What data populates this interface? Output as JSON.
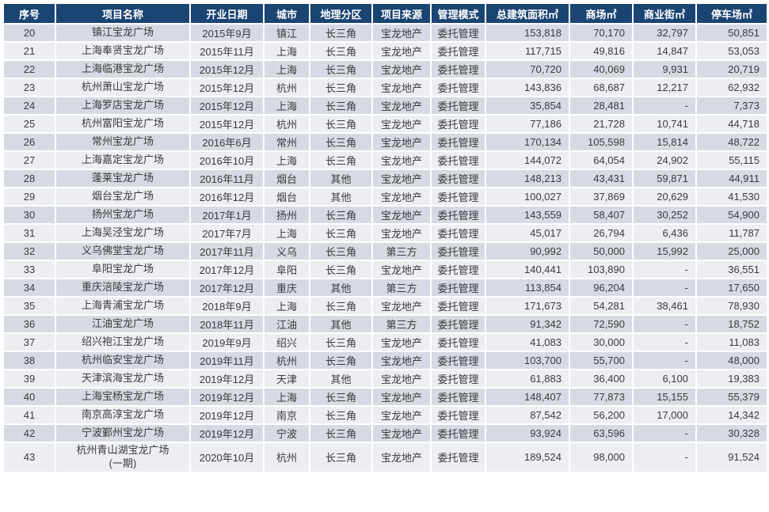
{
  "colors": {
    "header_bg": "#1a4472",
    "header_text": "#ffffff",
    "row_even_bg": "#d6dae2",
    "row_odd_bg": "#eceef2",
    "text": "#3b3b3b"
  },
  "chart_data": {
    "type": "table",
    "columns": [
      "序号",
      "项目名称",
      "开业日期",
      "城市",
      "地理分区",
      "项目来源",
      "管理模式",
      "总建筑面积㎡",
      "商场㎡",
      "商业街㎡",
      "停车场㎡"
    ],
    "rows": [
      [
        "20",
        "镇江宝龙广场",
        "2015年9月",
        "镇江",
        "长三角",
        "宝龙地产",
        "委托管理",
        "153,818",
        "70,170",
        "32,797",
        "50,851"
      ],
      [
        "21",
        "上海奉贤宝龙广场",
        "2015年11月",
        "上海",
        "长三角",
        "宝龙地产",
        "委托管理",
        "117,715",
        "49,816",
        "14,847",
        "53,053"
      ],
      [
        "22",
        "上海临港宝龙广场",
        "2015年12月",
        "上海",
        "长三角",
        "宝龙地产",
        "委托管理",
        "70,720",
        "40,069",
        "9,931",
        "20,719"
      ],
      [
        "23",
        "杭州萧山宝龙广场",
        "2015年12月",
        "杭州",
        "长三角",
        "宝龙地产",
        "委托管理",
        "143,836",
        "68,687",
        "12,217",
        "62,932"
      ],
      [
        "24",
        "上海罗店宝龙广场",
        "2015年12月",
        "上海",
        "长三角",
        "宝龙地产",
        "委托管理",
        "35,854",
        "28,481",
        "-",
        "7,373"
      ],
      [
        "25",
        "杭州富阳宝龙广场",
        "2015年12月",
        "杭州",
        "长三角",
        "宝龙地产",
        "委托管理",
        "77,186",
        "21,728",
        "10,741",
        "44,718"
      ],
      [
        "26",
        "常州宝龙广场",
        "2016年6月",
        "常州",
        "长三角",
        "宝龙地产",
        "委托管理",
        "170,134",
        "105,598",
        "15,814",
        "48,722"
      ],
      [
        "27",
        "上海嘉定宝龙广场",
        "2016年10月",
        "上海",
        "长三角",
        "宝龙地产",
        "委托管理",
        "144,072",
        "64,054",
        "24,902",
        "55,115"
      ],
      [
        "28",
        "蓬莱宝龙广场",
        "2016年11月",
        "烟台",
        "其他",
        "宝龙地产",
        "委托管理",
        "148,213",
        "43,431",
        "59,871",
        "44,911"
      ],
      [
        "29",
        "烟台宝龙广场",
        "2016年12月",
        "烟台",
        "其他",
        "宝龙地产",
        "委托管理",
        "100,027",
        "37,869",
        "20,629",
        "41,530"
      ],
      [
        "30",
        "扬州宝龙广场",
        "2017年1月",
        "扬州",
        "长三角",
        "宝龙地产",
        "委托管理",
        "143,559",
        "58,407",
        "30,252",
        "54,900"
      ],
      [
        "31",
        "上海吴泾宝龙广场",
        "2017年7月",
        "上海",
        "长三角",
        "宝龙地产",
        "委托管理",
        "45,017",
        "26,794",
        "6,436",
        "11,787"
      ],
      [
        "32",
        "义乌佛堂宝龙广场",
        "2017年11月",
        "义乌",
        "长三角",
        "第三方",
        "委托管理",
        "90,992",
        "50,000",
        "15,992",
        "25,000"
      ],
      [
        "33",
        "阜阳宝龙广场",
        "2017年12月",
        "阜阳",
        "长三角",
        "宝龙地产",
        "委托管理",
        "140,441",
        "103,890",
        "-",
        "36,551"
      ],
      [
        "34",
        "重庆涪陵宝龙广场",
        "2017年12月",
        "重庆",
        "其他",
        "第三方",
        "委托管理",
        "113,854",
        "96,204",
        "-",
        "17,650"
      ],
      [
        "35",
        "上海青浦宝龙广场",
        "2018年9月",
        "上海",
        "长三角",
        "宝龙地产",
        "委托管理",
        "171,673",
        "54,281",
        "38,461",
        "78,930"
      ],
      [
        "36",
        "江油宝龙广场",
        "2018年11月",
        "江油",
        "其他",
        "第三方",
        "委托管理",
        "91,342",
        "72,590",
        "-",
        "18,752"
      ],
      [
        "37",
        "绍兴袍江宝龙广场",
        "2019年9月",
        "绍兴",
        "长三角",
        "宝龙地产",
        "委托管理",
        "41,083",
        "30,000",
        "-",
        "11,083"
      ],
      [
        "38",
        "杭州临安宝龙广场",
        "2019年11月",
        "杭州",
        "长三角",
        "宝龙地产",
        "委托管理",
        "103,700",
        "55,700",
        "-",
        "48,000"
      ],
      [
        "39",
        "天津滨海宝龙广场",
        "2019年12月",
        "天津",
        "其他",
        "宝龙地产",
        "委托管理",
        "61,883",
        "36,400",
        "6,100",
        "19,383"
      ],
      [
        "40",
        "上海宝杨宝龙广场",
        "2019年12月",
        "上海",
        "长三角",
        "宝龙地产",
        "委托管理",
        "148,407",
        "77,873",
        "15,155",
        "55,379"
      ],
      [
        "41",
        "南京高淳宝龙广场",
        "2019年12月",
        "南京",
        "长三角",
        "宝龙地产",
        "委托管理",
        "87,542",
        "56,200",
        "17,000",
        "14,342"
      ],
      [
        "42",
        "宁波鄞州宝龙广场",
        "2019年12月",
        "宁波",
        "长三角",
        "宝龙地产",
        "委托管理",
        "93,924",
        "63,596",
        "-",
        "30,328"
      ],
      [
        "43",
        "杭州青山湖宝龙广场\n(一期)",
        "2020年10月",
        "杭州",
        "长三角",
        "宝龙地产",
        "委托管理",
        "189,524",
        "98,000",
        "-",
        "91,524"
      ]
    ]
  }
}
